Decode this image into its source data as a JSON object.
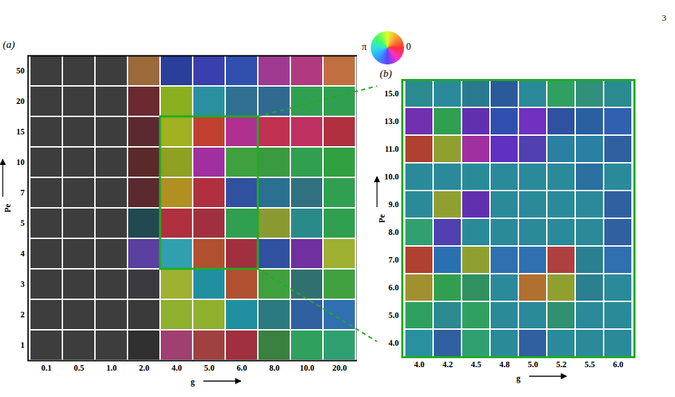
{
  "page_number": "3",
  "color_wheel_labels": [
    "π",
    "0"
  ],
  "chart_data": [
    {
      "type": "heatmap",
      "title": "(a)",
      "x_label": "g",
      "y_label": "Pe",
      "x": [
        "0.1",
        "0.5",
        "1.0",
        "2.0",
        "4.0",
        "5.0",
        "6.0",
        "8.0",
        "10.0",
        "20.0"
      ],
      "y": [
        "50",
        "20",
        "15",
        "10",
        "7",
        "5",
        "4",
        "3",
        "2",
        "1"
      ],
      "zoom": {
        "x": [
          "4.0",
          "6.0"
        ],
        "y": [
          "15",
          "4"
        ]
      },
      "colors": [
        [
          "#3d3d3d",
          "#3d3d3d",
          "#3d3d3d",
          "#9a6a3a",
          "#2a3f9a",
          "#3a3fb0",
          "#3050b0",
          "#a03a90",
          "#b03a80",
          "#c07040"
        ],
        [
          "#3d3d3d",
          "#3d3d3d",
          "#3d3d3d",
          "#6a2a30",
          "#8ab020",
          "#2a90a0",
          "#307090",
          "#306a90",
          "#30a050",
          "#30a050"
        ],
        [
          "#3d3d3d",
          "#3d3d3d",
          "#3d3d3d",
          "#5a2a30",
          "#a0b020",
          "#c04030",
          "#b03090",
          "#c03050",
          "#c03060",
          "#b03040"
        ],
        [
          "#3d3d3d",
          "#3d3d3d",
          "#3d3d3d",
          "#5a2a2a",
          "#90a020",
          "#a030a0",
          "#40a040",
          "#3a9a40",
          "#30a050",
          "#30a040"
        ],
        [
          "#3d3d3d",
          "#3d3d3d",
          "#3d3d3d",
          "#5a2a30",
          "#b09020",
          "#b03040",
          "#3050a0",
          "#2a7090",
          "#307080",
          "#30a050"
        ],
        [
          "#3d3d3d",
          "#3d3d3d",
          "#3d3d3d",
          "#204a50",
          "#b03040",
          "#a03040",
          "#30a050",
          "#8a9a30",
          "#2a8a8a",
          "#30a050"
        ],
        [
          "#3d3d3d",
          "#3d3d3d",
          "#3d3d3d",
          "#5a40a0",
          "#30a0b0",
          "#b05030",
          "#a03040",
          "#3050a0",
          "#7030a0",
          "#a0b030"
        ],
        [
          "#3d3d3d",
          "#3d3d3d",
          "#3d3d3d",
          "#3a3a40",
          "#a0b030",
          "#2090a0",
          "#b05030",
          "#40a040",
          "#307070",
          "#40a040"
        ],
        [
          "#3d3d3d",
          "#3d3d3d",
          "#3d3d3d",
          "#3a3a3a",
          "#90b030",
          "#90b030",
          "#2090a0",
          "#2a7a80",
          "#3060a0",
          "#3070b0"
        ],
        [
          "#3d3d3d",
          "#3d3d3d",
          "#3d3d3d",
          "#303030",
          "#a04070",
          "#a04040",
          "#a03040",
          "#3a8040",
          "#30a060",
          "#30a070"
        ]
      ]
    },
    {
      "type": "heatmap",
      "title": "(b)",
      "x_label": "g",
      "y_label": "Pe",
      "x": [
        "4.0",
        "4.2",
        "4.5",
        "4.8",
        "5.0",
        "5.2",
        "5.5",
        "6.0"
      ],
      "y": [
        "15.0",
        "13.0",
        "11.0",
        "10.0",
        "9.0",
        "8.0",
        "7.0",
        "6.0",
        "5.0",
        "4.0"
      ],
      "colors": [
        [
          "#2a8a90",
          "#2a8a9a",
          "#2a7a90",
          "#2a5a9a",
          "#2a8a9a",
          "#30a060",
          "#30907a",
          "#2a8a90"
        ],
        [
          "#7030b0",
          "#30a050",
          "#6030b0",
          "#3050b0",
          "#7030c0",
          "#3050a0",
          "#2a60a0",
          "#3060b0"
        ],
        [
          "#b04030",
          "#90a030",
          "#a030a0",
          "#6030c0",
          "#5040b0",
          "#2a80a0",
          "#2a80a0",
          "#3060a0"
        ],
        [
          "#2a8a9a",
          "#2a8a9a",
          "#2a8a9a",
          "#2a8a9a",
          "#2a8a9a",
          "#2a8a9a",
          "#2a70a0",
          "#2a8a9a"
        ],
        [
          "#2a8a9a",
          "#90a030",
          "#6030b0",
          "#2a8a9a",
          "#2a8a9a",
          "#2a8a9a",
          "#2a8a9a",
          "#3060a0"
        ],
        [
          "#30a070",
          "#5040b0",
          "#2a8a9a",
          "#2a8a9a",
          "#2a8a9a",
          "#2a8a9a",
          "#2a8a9a",
          "#3060a0"
        ],
        [
          "#b04030",
          "#2a70b0",
          "#90a030",
          "#3070b0",
          "#3070b0",
          "#b04040",
          "#2a8090",
          "#3070b0"
        ],
        [
          "#a09030",
          "#30a050",
          "#309060",
          "#2a8a9a",
          "#b07030",
          "#90a030",
          "#2a8090",
          "#2a8a9a"
        ],
        [
          "#30a060",
          "#2a8a90",
          "#30a060",
          "#2a8a9a",
          "#2a8a9a",
          "#309070",
          "#2a8a9a",
          "#2a8a9a"
        ],
        [
          "#2a90a0",
          "#3060a0",
          "#30a070",
          "#2a8a9a",
          "#3060a0",
          "#2a8a9a",
          "#2a8a9a",
          "#2a8a9a"
        ]
      ]
    }
  ]
}
